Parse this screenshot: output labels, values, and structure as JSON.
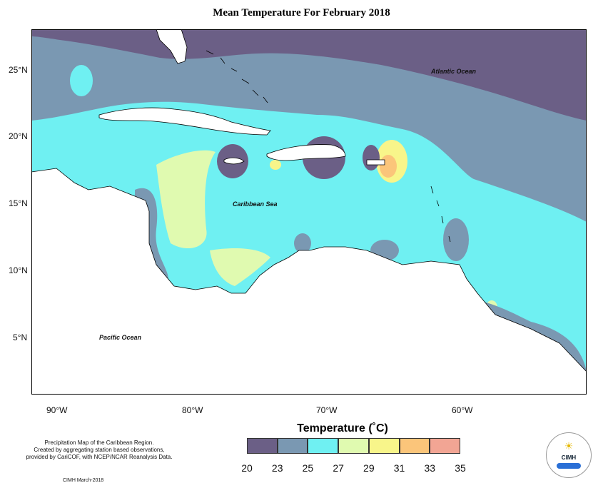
{
  "title": "Mean Temperature For February 2018",
  "ocean_labels": {
    "atlantic": "Atlantic Ocean",
    "caribbean": "Caribbean Sea",
    "pacific": "Pacific Ocean"
  },
  "lat_ticks": [
    "25°N",
    "20°N",
    "15°N",
    "10°N",
    "5°N"
  ],
  "lon_ticks": [
    "90°W",
    "80°W",
    "70°W",
    "60°W"
  ],
  "legend": {
    "title": "Temperature (˚C)",
    "breaks": [
      "20",
      "23",
      "25",
      "27",
      "29",
      "31",
      "33",
      "35"
    ],
    "colors": [
      "#6b5f86",
      "#7a98b2",
      "#6ff0f2",
      "#e0fab0",
      "#f8f58a",
      "#fbc57a",
      "#f2a594"
    ]
  },
  "notes": {
    "line1": "Precipitation Map of the Caribbean Region.",
    "line2": "Created by aggregating station based observations,",
    "line3": "provided by CariCOF, with NCEP/NCAR Reanalysis Data.",
    "credit": "CIMH March-2018"
  },
  "logo": {
    "text": "CIMH"
  }
}
